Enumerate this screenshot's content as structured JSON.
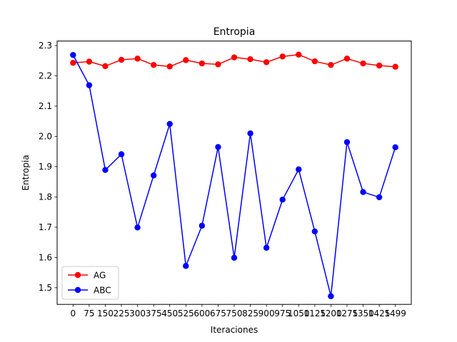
{
  "chart_data": {
    "type": "line",
    "title": "Entropia",
    "xlabel": "Iteraciones",
    "ylabel": "Entropia",
    "categories": [
      "0",
      "75",
      "150",
      "225",
      "300",
      "375",
      "450",
      "525",
      "600",
      "675",
      "750",
      "825",
      "900",
      "975",
      "1050",
      "1125",
      "1200",
      "1275",
      "1350",
      "1425",
      "1499"
    ],
    "yticks": [
      "1.5",
      "1.6",
      "1.7",
      "1.8",
      "1.9",
      "2.0",
      "2.1",
      "2.2",
      "2.3"
    ],
    "ylim": [
      1.445,
      2.315
    ],
    "grid": false,
    "legend_position": "lower-left",
    "series": [
      {
        "name": "AG",
        "color": "#ff0000",
        "marker": "circle",
        "values": [
          2.243,
          2.247,
          2.232,
          2.253,
          2.257,
          2.236,
          2.231,
          2.252,
          2.241,
          2.238,
          2.261,
          2.255,
          2.245,
          2.264,
          2.27,
          2.248,
          2.236,
          2.257,
          2.241,
          2.234,
          2.23
        ]
      },
      {
        "name": "ABC",
        "color": "#0000ff",
        "marker": "circle",
        "values": [
          2.269,
          2.169,
          1.889,
          1.941,
          1.699,
          1.871,
          2.041,
          1.572,
          1.705,
          1.965,
          1.599,
          2.01,
          1.632,
          1.791,
          1.891,
          1.686,
          1.472,
          1.981,
          1.816,
          1.799,
          1.964
        ]
      }
    ]
  }
}
